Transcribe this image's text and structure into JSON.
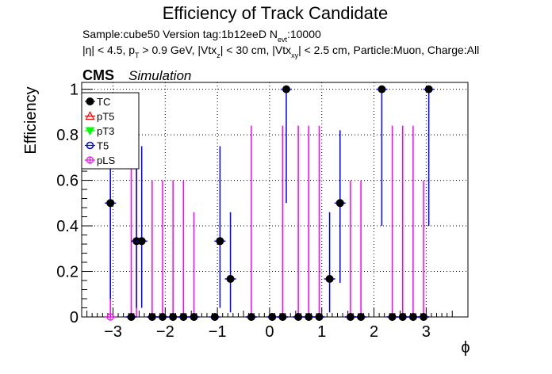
{
  "title": "Efficiency of Track Candidate",
  "subtitle_line1": "Sample:cube50   Version tag:1b12eeD  N",
  "subtitle_line1_sub": "evt",
  "subtitle_line1_tail": ":10000",
  "subtitle_line2_parts": [
    {
      "t": "|η| < 4.5, p",
      "sub": false
    },
    {
      "t": "T",
      "sub": true
    },
    {
      "t": " > 0.9 GeV, |Vtx",
      "sub": false
    },
    {
      "t": "z",
      "sub": true
    },
    {
      "t": "| < 30 cm, |Vtx",
      "sub": false
    },
    {
      "t": "xy",
      "sub": true
    },
    {
      "t": "| < 2.5 cm, Particle:Muon, Charge:All",
      "sub": false
    }
  ],
  "cms_label": "CMS",
  "simulation_label": "Simulation",
  "chart_data": {
    "type": "scatter",
    "xlabel": "ϕ",
    "ylabel": "Efficiency",
    "xlim": [
      -3.6,
      3.8
    ],
    "ylim": [
      0,
      1.03
    ],
    "x_ticks": [
      -3,
      -2,
      -1,
      0,
      1,
      2,
      3
    ],
    "x_tick_labels": [
      "−3",
      "−2",
      "−1",
      "0",
      "1",
      "2",
      "3"
    ],
    "y_ticks": [
      0,
      0.2,
      0.4,
      0.6,
      0.8,
      1
    ],
    "y_tick_labels": [
      "0",
      "0.2",
      "0.4",
      "0.6",
      "0.8",
      "1"
    ],
    "grid": true,
    "legend_position": "top-left",
    "series": [
      {
        "name": "TC",
        "color": "#000000",
        "marker": "filled-circle",
        "points": [
          {
            "x": -3.05,
            "y": 0.5,
            "lo": 0.08,
            "hi": 0.92
          },
          {
            "x": -2.65,
            "y": 0.0
          },
          {
            "x": -2.55,
            "y": 0.333,
            "lo": 0.04,
            "hi": 0.75
          },
          {
            "x": -2.45,
            "y": 0.333,
            "lo": 0.04,
            "hi": 0.75
          },
          {
            "x": -2.25,
            "y": 0.0
          },
          {
            "x": -2.05,
            "y": 0.0
          },
          {
            "x": -1.85,
            "y": 0.0
          },
          {
            "x": -1.65,
            "y": 0.0
          },
          {
            "x": -1.45,
            "y": 0.0
          },
          {
            "x": -1.05,
            "y": 0.0
          },
          {
            "x": -0.95,
            "y": 0.333,
            "lo": 0.04,
            "hi": 0.75
          },
          {
            "x": -0.75,
            "y": 0.167,
            "lo": 0.02,
            "hi": 0.46
          },
          {
            "x": -0.35,
            "y": 0.0
          },
          {
            "x": 0.05,
            "y": 0.0
          },
          {
            "x": 0.25,
            "y": 0.0
          },
          {
            "x": 0.32,
            "y": 1.0,
            "lo": 0.5,
            "hi": 1.0
          },
          {
            "x": 0.55,
            "y": 0.0
          },
          {
            "x": 0.75,
            "y": 0.0
          },
          {
            "x": 0.95,
            "y": 0.0
          },
          {
            "x": 1.15,
            "y": 0.167,
            "lo": 0.02,
            "hi": 0.46
          },
          {
            "x": 1.35,
            "y": 0.5,
            "lo": 0.15,
            "hi": 0.82
          },
          {
            "x": 1.55,
            "y": 0.0
          },
          {
            "x": 1.75,
            "y": 0.0
          },
          {
            "x": 2.15,
            "y": 1.0,
            "lo": 0.4,
            "hi": 1.0
          },
          {
            "x": 2.35,
            "y": 0.0
          },
          {
            "x": 2.55,
            "y": 0.0
          },
          {
            "x": 2.75,
            "y": 0.0
          },
          {
            "x": 2.95,
            "y": 0.0
          },
          {
            "x": 3.05,
            "y": 1.0,
            "lo": 0.4,
            "hi": 1.0
          }
        ]
      },
      {
        "name": "pT5",
        "color": "#ff0000",
        "marker": "open-triangle-up",
        "points": []
      },
      {
        "name": "pT3",
        "color": "#00ff00",
        "marker": "filled-triangle-down",
        "points": []
      },
      {
        "name": "T5",
        "color": "#0000ff",
        "marker": "open-circle",
        "points": []
      },
      {
        "name": "pLS",
        "color": "#ff00ff",
        "marker": "open-circle-cross",
        "points": [
          {
            "x": -3.05,
            "y": 0.0,
            "hi": 0.6
          },
          {
            "x": -2.65,
            "y": 0.0,
            "hi": 0.75
          },
          {
            "x": -2.55,
            "y": 0.333,
            "lo": 0.0,
            "hi": 0.84
          },
          {
            "x": -2.25,
            "y": 0.0,
            "hi": 0.6
          },
          {
            "x": -2.05,
            "y": 0.0,
            "hi": 0.6
          },
          {
            "x": -1.85,
            "y": 0.0,
            "hi": 0.6
          },
          {
            "x": -1.65,
            "y": 0.0,
            "hi": 0.6
          },
          {
            "x": -1.45,
            "y": 0.0,
            "hi": 0.46
          },
          {
            "x": -0.35,
            "y": 0.0,
            "hi": 0.84
          },
          {
            "x": 0.25,
            "y": 0.0,
            "hi": 0.84
          },
          {
            "x": 0.55,
            "y": 0.0,
            "hi": 0.84
          },
          {
            "x": 0.75,
            "y": 0.0,
            "hi": 0.84
          },
          {
            "x": 0.95,
            "y": 0.0,
            "hi": 0.84
          },
          {
            "x": 1.55,
            "y": 0.0,
            "hi": 0.6
          },
          {
            "x": 1.75,
            "y": 0.0,
            "hi": 0.6
          },
          {
            "x": 2.35,
            "y": 0.0,
            "hi": 0.84
          },
          {
            "x": 2.55,
            "y": 0.0,
            "hi": 0.84
          },
          {
            "x": 2.75,
            "y": 0.0,
            "hi": 0.84
          },
          {
            "x": 2.95,
            "y": 0.0,
            "hi": 0.6
          }
        ]
      }
    ]
  }
}
